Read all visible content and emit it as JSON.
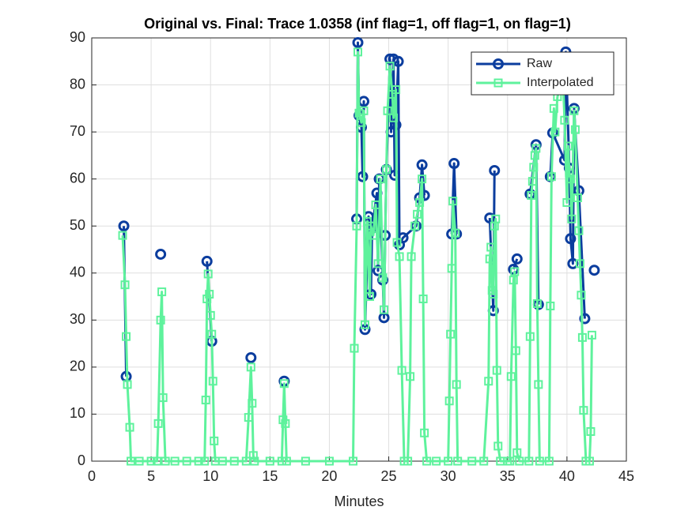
{
  "chart_data": {
    "type": "line",
    "title": "Original vs. Final: Trace 1.0358 (inf flag=1, off flag=1, on flag=1)",
    "x_label": "Minutes",
    "xlim": [
      0,
      45
    ],
    "xticks": [
      0,
      5,
      10,
      15,
      20,
      25,
      30,
      35,
      40,
      45
    ],
    "ylim": [
      0,
      90
    ],
    "yticks": [
      0,
      10,
      20,
      30,
      40,
      50,
      60,
      70,
      80,
      90
    ],
    "grid": true,
    "legend_position": "northeast",
    "series": [
      {
        "name": "Raw",
        "color": "#0b3d9e",
        "marker": "circle",
        "x": [
          2.7,
          2.9,
          4,
          5.8,
          8,
          9.7,
          10.1,
          12,
          13.4,
          15,
          16.2,
          20,
          22.3,
          22.4,
          22.5,
          22.7,
          22.8,
          22.9,
          23.0,
          23.3,
          23.5,
          23.6,
          24.0,
          24.1,
          24.2,
          24.5,
          24.6,
          24.7,
          24.8,
          25.1,
          25.2,
          25.4,
          25.5,
          25.6,
          25.8,
          25.9,
          26.2,
          27.3,
          27.6,
          27.8,
          28.0,
          29,
          30.3,
          30.5,
          30.7,
          32,
          33.5,
          33.8,
          33.9,
          35,
          35.5,
          35.8,
          36.5,
          36.9,
          37.4,
          37.6,
          38,
          38.6,
          38.8,
          39.8,
          39.9,
          40.2,
          40.3,
          40.5,
          40.6,
          41.0,
          41.5,
          42,
          42.3
        ],
        "values": [
          50,
          18,
          null,
          44,
          null,
          42.5,
          25.5,
          null,
          22,
          null,
          17,
          null,
          51.5,
          89,
          73.5,
          71,
          60.5,
          76.5,
          28,
          52,
          35.5,
          49.5,
          57,
          40.5,
          60,
          38.5,
          30.5,
          48,
          62,
          85.5,
          70,
          85.5,
          60.8,
          71.5,
          85,
          46,
          47.5,
          50,
          56,
          63,
          56.5,
          null,
          48.3,
          63.3,
          48.3,
          null,
          51.7,
          32,
          61.8,
          null,
          40.8,
          43,
          null,
          56.8,
          67.3,
          33.3,
          null,
          60.5,
          69.8,
          64,
          87,
          62.3,
          47.3,
          42,
          75,
          57.5,
          30.3,
          null,
          40.6
        ]
      },
      {
        "name": "Interpolated",
        "color": "#5ef29c",
        "marker": "square",
        "x": [
          2.6,
          2.8,
          2.9,
          3.0,
          3.2,
          3.3,
          4,
          5,
          5.5,
          5.6,
          5.8,
          5.9,
          6.0,
          6.2,
          7,
          8,
          9,
          9.5,
          9.6,
          9.7,
          9.8,
          9.9,
          10.0,
          10.1,
          10.2,
          10.3,
          10.4,
          11,
          12,
          13,
          13.2,
          13.4,
          13.5,
          13.6,
          13.7,
          15,
          16,
          16.1,
          16.2,
          16.3,
          16.4,
          18,
          20,
          22,
          22.1,
          22.3,
          22.4,
          22.5,
          22.7,
          22.9,
          23.0,
          23.2,
          23.4,
          23.5,
          23.7,
          23.9,
          24.1,
          24.3,
          24.5,
          24.6,
          24.8,
          24.9,
          25.1,
          25.3,
          25.4,
          25.6,
          25.7,
          25.9,
          26.1,
          26.3,
          26.6,
          26.8,
          26.9,
          27.2,
          27.4,
          27.6,
          27.8,
          27.9,
          28.0,
          28.2,
          29,
          30,
          30.1,
          30.2,
          30.3,
          30.4,
          30.6,
          30.7,
          30.8,
          32,
          33,
          33.4,
          33.5,
          33.6,
          33.7,
          33.8,
          33.9,
          34.0,
          34.1,
          34.2,
          34.4,
          35,
          35.2,
          35.3,
          35.5,
          35.6,
          35.7,
          35.8,
          36,
          36.8,
          36.9,
          37.0,
          37.1,
          37.2,
          37.3,
          37.4,
          37.5,
          37.6,
          37.7,
          38.5,
          38.6,
          38.7,
          38.9,
          39.0,
          39.2,
          39.4,
          39.6,
          39.8,
          40.0,
          40.1,
          40.2,
          40.3,
          40.4,
          40.6,
          40.7,
          40.9,
          41.0,
          41.1,
          41.2,
          41.3,
          41.4,
          41.6,
          41.9,
          42.0,
          42.1
        ],
        "values": [
          48,
          37.5,
          26.5,
          16.3,
          7.2,
          0,
          0,
          0,
          0,
          8,
          30,
          36,
          13.5,
          0,
          0,
          0,
          0,
          0,
          13,
          34.5,
          39.8,
          35.5,
          31,
          27,
          17,
          4.3,
          0,
          0,
          0,
          0,
          9.3,
          20,
          12.3,
          1.2,
          0,
          0,
          0,
          8.8,
          16.5,
          8,
          0,
          0,
          0,
          0,
          24,
          50,
          87,
          74,
          72,
          74.5,
          29,
          51,
          35,
          50,
          48,
          54.5,
          42,
          60,
          39,
          32.2,
          62,
          74.5,
          84,
          78,
          73,
          79,
          46.5,
          43.5,
          19.3,
          0,
          0,
          18,
          43.5,
          50,
          52.5,
          55,
          60,
          34.5,
          6,
          0,
          0,
          0,
          12.8,
          27,
          41,
          55.3,
          48.5,
          16.3,
          0,
          0,
          0,
          17,
          43,
          45.5,
          36.3,
          35.5,
          50,
          51.5,
          19.3,
          3.2,
          0,
          0,
          0,
          18,
          38.5,
          40.3,
          23.5,
          1.8,
          0,
          0,
          26.5,
          56.5,
          59.5,
          62.5,
          65,
          66.5,
          33.5,
          16.3,
          0,
          0,
          33,
          60.5,
          75,
          70,
          77.5,
          79,
          85,
          72.5,
          55,
          67,
          61.3,
          60,
          51.5,
          74.5,
          70.5,
          56,
          49,
          42,
          35.3,
          26.3,
          10.8,
          0,
          0,
          6.3,
          26.8
        ]
      }
    ]
  }
}
